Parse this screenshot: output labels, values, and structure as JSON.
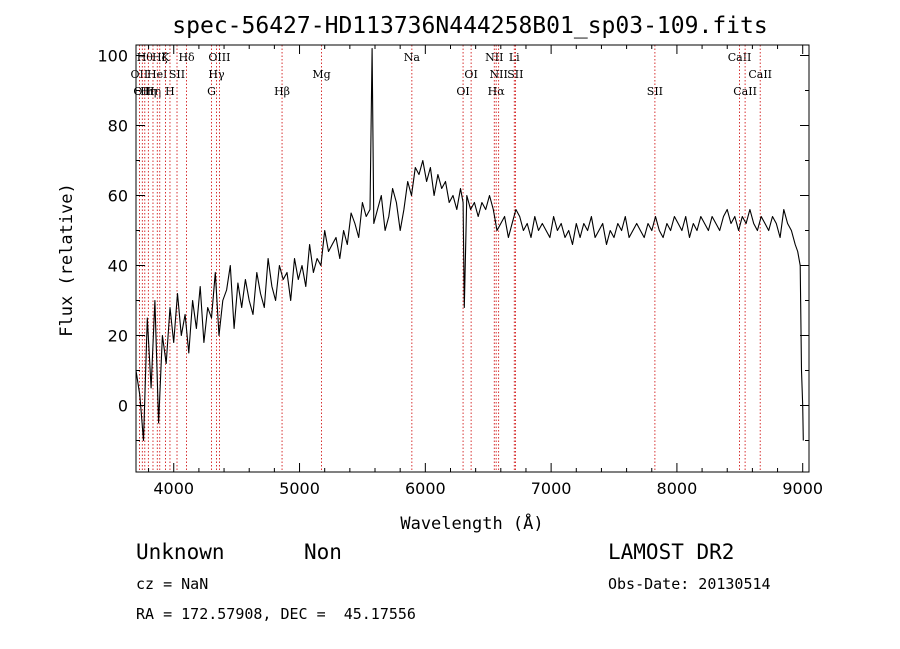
{
  "chart_data": {
    "type": "line",
    "title": "spec-56427-HD113736N444258B01_sp03-109.fits",
    "xlabel": "Wavelength (Å)",
    "ylabel": "Flux (relative)",
    "xlim": [
      3700,
      9050
    ],
    "ylim": [
      -19,
      103
    ],
    "xticks": [
      4000,
      5000,
      6000,
      7000,
      8000,
      9000
    ],
    "yticks": [
      0,
      20,
      40,
      60,
      80,
      100
    ],
    "series": [
      {
        "color": "#000000",
        "x": [
          3700,
          3730,
          3760,
          3790,
          3820,
          3850,
          3880,
          3910,
          3940,
          3970,
          4000,
          4030,
          4060,
          4090,
          4120,
          4150,
          4180,
          4210,
          4240,
          4270,
          4300,
          4330,
          4360,
          4390,
          4420,
          4450,
          4480,
          4510,
          4540,
          4570,
          4600,
          4630,
          4660,
          4690,
          4720,
          4750,
          4780,
          4810,
          4840,
          4870,
          4900,
          4930,
          4960,
          4990,
          5020,
          5050,
          5080,
          5110,
          5140,
          5170,
          5200,
          5230,
          5260,
          5290,
          5320,
          5350,
          5380,
          5410,
          5440,
          5470,
          5500,
          5530,
          5560,
          5577,
          5590,
          5620,
          5650,
          5680,
          5710,
          5740,
          5770,
          5800,
          5830,
          5860,
          5890,
          5920,
          5950,
          5980,
          6010,
          6040,
          6070,
          6100,
          6130,
          6160,
          6190,
          6220,
          6250,
          6280,
          6300,
          6310,
          6330,
          6360,
          6390,
          6420,
          6450,
          6480,
          6510,
          6540,
          6570,
          6600,
          6630,
          6660,
          6690,
          6720,
          6750,
          6780,
          6810,
          6840,
          6870,
          6900,
          6930,
          6960,
          6990,
          7020,
          7050,
          7080,
          7110,
          7140,
          7170,
          7200,
          7230,
          7260,
          7290,
          7320,
          7350,
          7380,
          7410,
          7440,
          7470,
          7500,
          7530,
          7560,
          7590,
          7620,
          7650,
          7680,
          7710,
          7740,
          7770,
          7800,
          7830,
          7860,
          7890,
          7920,
          7950,
          7980,
          8010,
          8040,
          8070,
          8100,
          8130,
          8160,
          8190,
          8220,
          8250,
          8280,
          8310,
          8340,
          8370,
          8400,
          8430,
          8460,
          8490,
          8520,
          8550,
          8580,
          8610,
          8640,
          8670,
          8700,
          8730,
          8760,
          8790,
          8820,
          8850,
          8880,
          8910,
          8940,
          8960,
          8980,
          8990,
          9000,
          9005
        ],
        "y": [
          10,
          3,
          -10,
          25,
          5,
          30,
          -5,
          20,
          12,
          28,
          18,
          32,
          20,
          26,
          15,
          30,
          22,
          34,
          18,
          28,
          25,
          38,
          20,
          30,
          33,
          40,
          22,
          35,
          28,
          36,
          30,
          26,
          38,
          32,
          28,
          42,
          34,
          30,
          40,
          36,
          38,
          30,
          42,
          36,
          40,
          34,
          46,
          38,
          42,
          40,
          50,
          44,
          46,
          48,
          42,
          50,
          46,
          55,
          52,
          48,
          58,
          54,
          56,
          102,
          52,
          56,
          60,
          50,
          54,
          62,
          58,
          50,
          56,
          64,
          60,
          68,
          66,
          70,
          64,
          68,
          60,
          66,
          62,
          64,
          58,
          60,
          56,
          62,
          58,
          28,
          60,
          56,
          58,
          54,
          58,
          56,
          60,
          56,
          50,
          52,
          54,
          48,
          52,
          56,
          54,
          50,
          52,
          48,
          54,
          50,
          52,
          50,
          48,
          54,
          50,
          52,
          48,
          50,
          46,
          52,
          48,
          52,
          50,
          54,
          48,
          50,
          52,
          46,
          50,
          48,
          52,
          50,
          54,
          48,
          50,
          52,
          50,
          48,
          52,
          50,
          54,
          50,
          48,
          52,
          50,
          54,
          52,
          50,
          54,
          48,
          52,
          50,
          54,
          52,
          50,
          54,
          52,
          50,
          54,
          56,
          52,
          54,
          50,
          54,
          52,
          56,
          52,
          50,
          54,
          52,
          50,
          54,
          52,
          48,
          56,
          52,
          50,
          46,
          44,
          40,
          10,
          0,
          -10
        ]
      }
    ]
  },
  "line_marks": [
    {
      "wl": 3727,
      "label": "OII",
      "row": 2
    },
    {
      "wl": 3750,
      "label": "OII",
      "row": 3
    },
    {
      "wl": 3770,
      "label": "Hθ",
      "row": 1
    },
    {
      "wl": 3798,
      "label": "Hη",
      "row": 3
    },
    {
      "wl": 3835,
      "label": "Hη",
      "row": 3
    },
    {
      "wl": 3869,
      "label": "HeI",
      "row": 2
    },
    {
      "wl": 3889,
      "label": "Hζ",
      "row": 1
    },
    {
      "wl": 3934,
      "label": "K",
      "row": 1
    },
    {
      "wl": 3970,
      "label": "H",
      "row": 3
    },
    {
      "wl": 4026,
      "label": "SII",
      "row": 2
    },
    {
      "wl": 4102,
      "label": "Hδ",
      "row": 1
    },
    {
      "wl": 4300,
      "label": "G",
      "row": 3
    },
    {
      "wl": 4340,
      "label": "Hγ",
      "row": 2
    },
    {
      "wl": 4363,
      "label": "OIII",
      "row": 1
    },
    {
      "wl": 4861,
      "label": "Hβ",
      "row": 3
    },
    {
      "wl": 5175,
      "label": "Mg",
      "row": 2
    },
    {
      "wl": 5893,
      "label": "Na",
      "row": 1
    },
    {
      "wl": 6300,
      "label": "OI",
      "row": 3
    },
    {
      "wl": 6364,
      "label": "OI",
      "row": 2
    },
    {
      "wl": 6548,
      "label": "NII",
      "row": 1
    },
    {
      "wl": 6563,
      "label": "Hα",
      "row": 3
    },
    {
      "wl": 6583,
      "label": "NII",
      "row": 2
    },
    {
      "wl": 6707,
      "label": "Li",
      "row": 1
    },
    {
      "wl": 6716,
      "label": "SII",
      "row": 2
    },
    {
      "wl": 7825,
      "label": "SII",
      "row": 3
    },
    {
      "wl": 8498,
      "label": "CaII",
      "row": 1
    },
    {
      "wl": 8542,
      "label": "CaII",
      "row": 3
    },
    {
      "wl": 8662,
      "label": "CaII",
      "row": 2
    }
  ],
  "info": {
    "class_label": "Unknown",
    "subclass_label": "Non",
    "cz_label": "cz = NaN",
    "coords_label": "RA = 172.57908, DEC =  45.17556",
    "survey_label": "LAMOST DR2",
    "obs_date_label": "Obs-Date: 20130514"
  },
  "colors": {
    "spectrum": "#000000",
    "line_marker": "#cc0000",
    "background": "#ffffff"
  }
}
